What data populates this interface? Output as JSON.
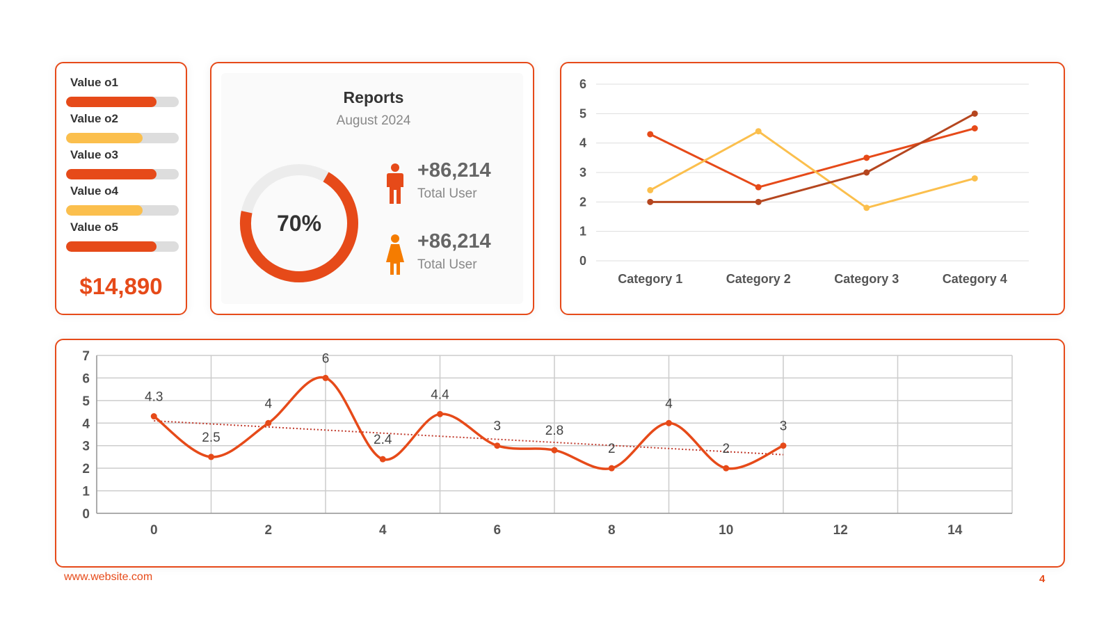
{
  "colors": {
    "accent": "#e64a19",
    "red": "#e64a19",
    "yellow": "#fbbf4d",
    "track": "#dddddd",
    "dark_red": "#b5461f",
    "orange": "#f57c00"
  },
  "values_card": {
    "items": [
      {
        "label": "Value o1",
        "fraction": 0.8,
        "color": "#e64a19"
      },
      {
        "label": "Value o2",
        "fraction": 0.68,
        "color": "#fbbf4d"
      },
      {
        "label": "Value o3",
        "fraction": 0.8,
        "color": "#e64a19"
      },
      {
        "label": "Value o4",
        "fraction": 0.68,
        "color": "#fbbf4d"
      },
      {
        "label": "Value o5",
        "fraction": 0.8,
        "color": "#e64a19"
      }
    ],
    "total": "$14,890"
  },
  "reports": {
    "title": "Reports",
    "subtitle": "August 2024",
    "donut_percent": 70,
    "donut_label": "70%",
    "stats": [
      {
        "value": "+86,214",
        "label": "Total User",
        "icon": "male-user-icon"
      },
      {
        "value": "+86,214",
        "label": "Total User",
        "icon": "female-user-icon"
      }
    ]
  },
  "chart_data": [
    {
      "type": "line",
      "categories": [
        "Category 1",
        "Category 2",
        "Category 3",
        "Category 4"
      ],
      "ylim": [
        0,
        6
      ],
      "yticks": [
        0,
        1,
        2,
        3,
        4,
        5,
        6
      ],
      "grid": true,
      "series": [
        {
          "color": "#e64a19",
          "values": [
            4.3,
            2.5,
            3.5,
            4.5
          ]
        },
        {
          "color": "#fbbf4d",
          "values": [
            2.4,
            4.4,
            1.8,
            2.8
          ]
        },
        {
          "color": "#b5461f",
          "values": [
            2.0,
            2.0,
            3.0,
            5.0
          ]
        }
      ]
    },
    {
      "type": "line",
      "smooth": true,
      "x": [
        0,
        1,
        2,
        3,
        4,
        5,
        6,
        7,
        8,
        9,
        10,
        11
      ],
      "y": [
        4.3,
        2.5,
        4,
        6,
        2.4,
        4.4,
        3,
        2.8,
        2,
        4,
        2,
        3
      ],
      "data_labels": [
        "4.3",
        "2.5",
        "4",
        "6",
        "2.4",
        "4.4",
        "3",
        "2.8",
        "2",
        "4",
        "2",
        "3"
      ],
      "xlim": [
        -1,
        15
      ],
      "xticks": [
        0,
        2,
        4,
        6,
        8,
        10,
        12,
        14
      ],
      "ylim": [
        0,
        7
      ],
      "yticks": [
        0,
        1,
        2,
        3,
        4,
        5,
        6,
        7
      ],
      "grid": true,
      "trendline": {
        "type": "linear",
        "style": "dotted",
        "start": [
          0,
          4.1
        ],
        "end": [
          11,
          2.6
        ]
      },
      "color": "#e64a19"
    }
  ],
  "footer": {
    "url": "www.website.com",
    "page": "4"
  }
}
